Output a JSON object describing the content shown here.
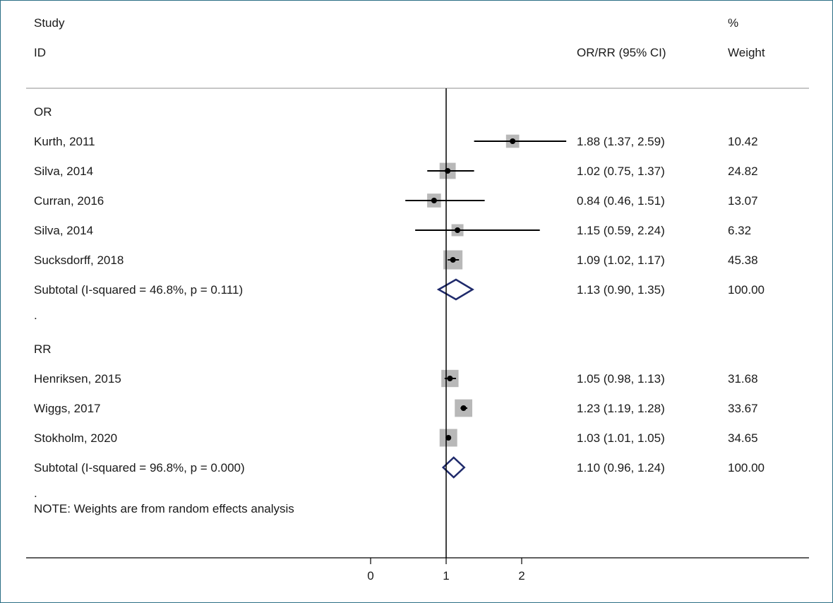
{
  "header": {
    "study": "Study",
    "id": "ID",
    "estimate": "OR/RR (95% CI)",
    "pct": "%",
    "weight": "Weight"
  },
  "chart_data": {
    "type": "forest",
    "x_ticks": [
      "0",
      "1",
      "2"
    ],
    "xlim": [
      0,
      2
    ],
    "reference_line": 1,
    "rows": [
      {
        "kind": "group",
        "label": "OR"
      },
      {
        "kind": "study",
        "label": "Kurth, 2011",
        "est": 1.88,
        "lo": 1.37,
        "hi": 2.59,
        "ci_text": "1.88 (1.37, 2.59)",
        "weight": 10.42,
        "weight_text": "10.42"
      },
      {
        "kind": "study",
        "label": "Silva, 2014",
        "est": 1.02,
        "lo": 0.75,
        "hi": 1.37,
        "ci_text": "1.02 (0.75, 1.37)",
        "weight": 24.82,
        "weight_text": "24.82"
      },
      {
        "kind": "study",
        "label": "Curran, 2016",
        "est": 0.84,
        "lo": 0.46,
        "hi": 1.51,
        "ci_text": "0.84 (0.46, 1.51)",
        "weight": 13.07,
        "weight_text": "13.07"
      },
      {
        "kind": "study",
        "label": "Silva, 2014",
        "est": 1.15,
        "lo": 0.59,
        "hi": 2.24,
        "ci_text": "1.15 (0.59, 2.24)",
        "weight": 6.32,
        "weight_text": "6.32"
      },
      {
        "kind": "study",
        "label": "Sucksdorff, 2018",
        "est": 1.09,
        "lo": 1.02,
        "hi": 1.17,
        "ci_text": "1.09 (1.02, 1.17)",
        "weight": 45.38,
        "weight_text": "45.38"
      },
      {
        "kind": "subtotal",
        "label": "Subtotal  (I-squared = 46.8%, p = 0.111)",
        "est": 1.13,
        "lo": 0.9,
        "hi": 1.35,
        "ci_text": "1.13 (0.90, 1.35)",
        "weight_text": "100.00"
      },
      {
        "kind": "spacer",
        "label": "."
      },
      {
        "kind": "group",
        "label": "RR"
      },
      {
        "kind": "study",
        "label": "Henriksen, 2015",
        "est": 1.05,
        "lo": 0.98,
        "hi": 1.13,
        "ci_text": "1.05 (0.98, 1.13)",
        "weight": 31.68,
        "weight_text": "31.68"
      },
      {
        "kind": "study",
        "label": "Wiggs, 2017",
        "est": 1.23,
        "lo": 1.19,
        "hi": 1.28,
        "ci_text": "1.23 (1.19, 1.28)",
        "weight": 33.67,
        "weight_text": "33.67"
      },
      {
        "kind": "study",
        "label": "Stokholm, 2020",
        "est": 1.03,
        "lo": 1.01,
        "hi": 1.05,
        "ci_text": "1.03 (1.01, 1.05)",
        "weight": 34.65,
        "weight_text": "34.65"
      },
      {
        "kind": "subtotal",
        "label": "Subtotal  (I-squared = 96.8%, p = 0.000)",
        "est": 1.1,
        "lo": 0.96,
        "hi": 1.24,
        "ci_text": "1.10 (0.96, 1.24)",
        "weight_text": "100.00"
      }
    ],
    "note_dot": ".",
    "note": "NOTE: Weights are from random effects analysis",
    "colors": {
      "diamond": "#1f2a6b",
      "box": "#b8b8b8",
      "line": "#000000"
    }
  }
}
